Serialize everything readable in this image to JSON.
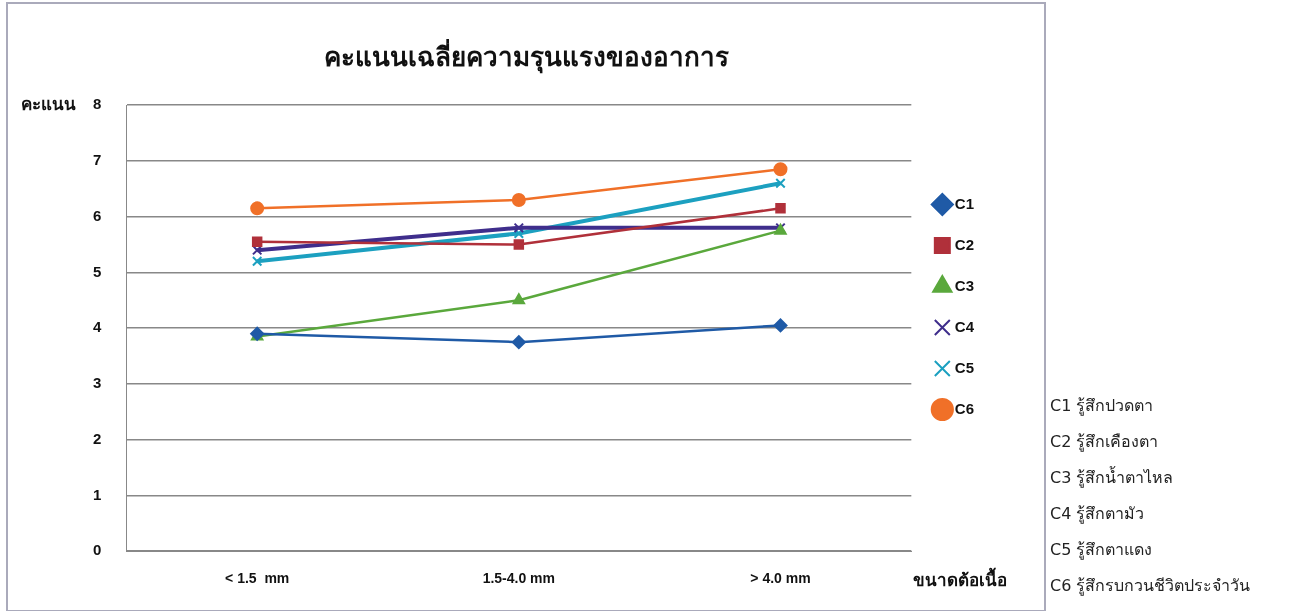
{
  "chart_data": {
    "type": "line",
    "title": "คะแนนเฉลี่ยความรุนแรงของอาการ",
    "xlabel": "ขนาดต้อเนื้อ",
    "ylabel": "คะแนน",
    "categories": [
      "< 1.5  mm",
      "1.5-4.0 mm",
      "> 4.0 mm"
    ],
    "series": [
      {
        "name": "C1",
        "color": "#1f5aa6",
        "marker": "diamond",
        "values": [
          3.9,
          3.75,
          4.05
        ]
      },
      {
        "name": "C2",
        "color": "#b0303a",
        "marker": "square",
        "values": [
          5.55,
          5.5,
          6.15
        ]
      },
      {
        "name": "C3",
        "color": "#5aa83c",
        "marker": "triangle",
        "values": [
          3.85,
          4.5,
          5.75
        ]
      },
      {
        "name": "C4",
        "color": "#3f2e8c",
        "marker": "cross",
        "values": [
          5.4,
          5.8,
          5.8
        ]
      },
      {
        "name": "C5",
        "color": "#1ca0c0",
        "marker": "cross",
        "values": [
          5.2,
          5.7,
          6.6
        ]
      },
      {
        "name": "C6",
        "color": "#f07028",
        "marker": "circle",
        "values": [
          6.15,
          6.3,
          6.85
        ]
      }
    ],
    "ylim": [
      0,
      8
    ],
    "yticks": [
      0,
      1,
      2,
      3,
      4,
      5,
      6,
      7,
      8
    ],
    "grid": "y",
    "legend": "right",
    "annotations": [
      "C1 รู้สึกปวดตา",
      "C2 รู้สึกเคืองตา",
      "C3 รู้สึกน้ำตาไหล",
      "C4 รู้สึกตามัว",
      "C5 รู้สึกตาแดง",
      "C6 รู้สึกรบกวนชีวิตประจำวัน"
    ]
  }
}
